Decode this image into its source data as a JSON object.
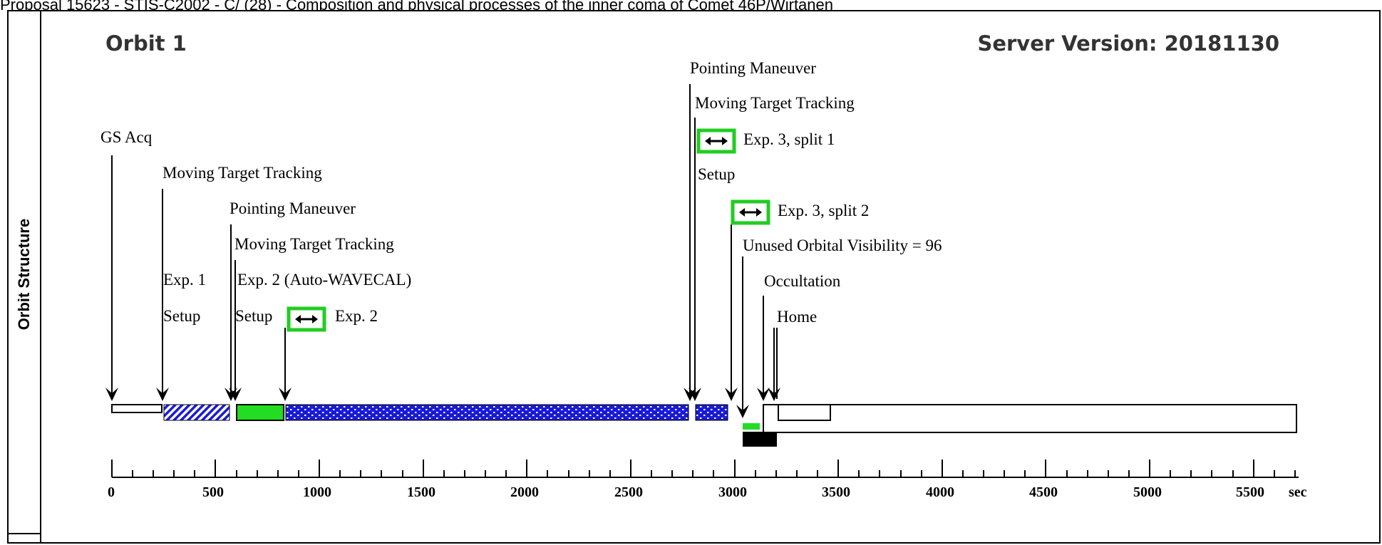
{
  "header": {
    "proposal_line": "Proposal 15623 - STIS-C2002 - C/ (28) - Composition and physical processes of the inner coma of Comet 46P/Wirtanen",
    "orbit_title": "Orbit 1",
    "server_version": "Server Version: 20181130"
  },
  "sidebar": {
    "label": "Orbit Structure"
  },
  "events": [
    {
      "label": "GS Acq"
    },
    {
      "label": "Moving Target Tracking"
    },
    {
      "label": "Pointing Maneuver"
    },
    {
      "label": "Moving Target Tracking"
    },
    {
      "label": "Exp. 1"
    },
    {
      "label": "Setup"
    },
    {
      "label": "Exp. 2 (Auto-WAVECAL)"
    },
    {
      "label": "Setup"
    },
    {
      "label": "Exp. 2"
    },
    {
      "label": "Pointing Maneuver"
    },
    {
      "label": "Moving Target Tracking"
    },
    {
      "label": "Exp. 3, split 1"
    },
    {
      "label": "Setup"
    },
    {
      "label": "Exp. 3, split 2"
    },
    {
      "label": "Unused Orbital Visibility = 96"
    },
    {
      "label": "Occultation"
    },
    {
      "label": "Home"
    }
  ],
  "axis": {
    "unit": "sec",
    "tick_labels": [
      "0",
      "500",
      "1000",
      "1500",
      "2000",
      "2500",
      "3000",
      "3500",
      "4000",
      "4500",
      "5000",
      "5500"
    ]
  },
  "colors": {
    "exposure_green": "#22dd22",
    "hatch_blue": "#1a1ad6",
    "black": "#000000"
  }
}
